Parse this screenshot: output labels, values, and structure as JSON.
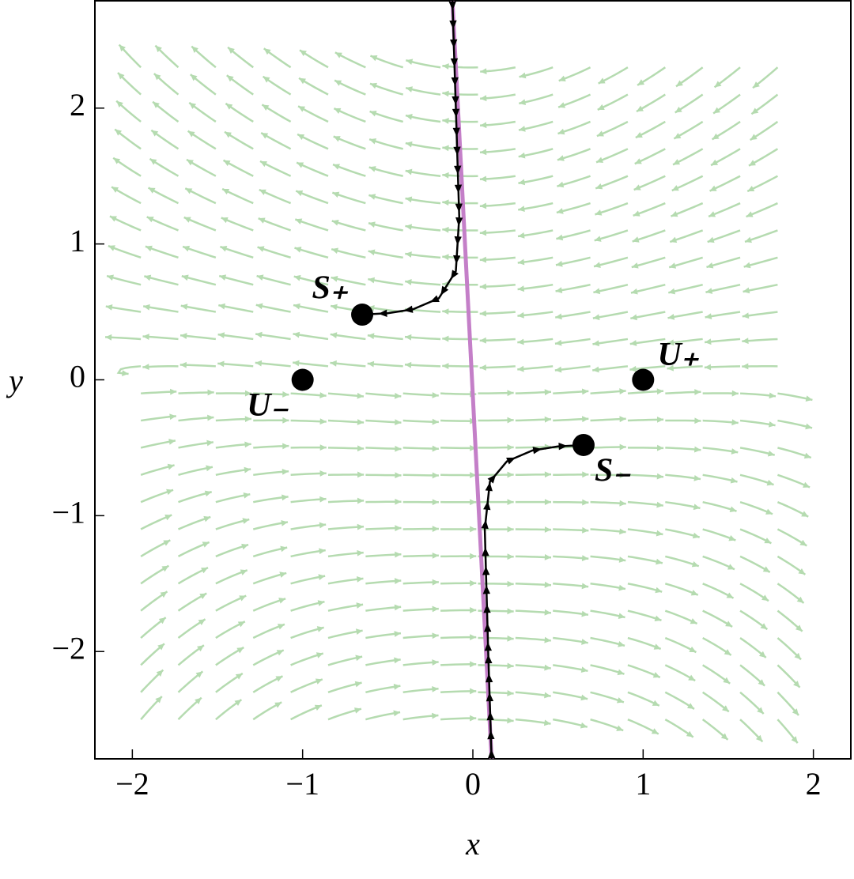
{
  "chart_data": {
    "type": "phase-portrait",
    "x_label": "x",
    "y_label": "y",
    "xlim": [
      -2.22,
      2.22
    ],
    "ylim": [
      -2.79,
      2.79
    ],
    "xticks": [
      {
        "value": -2,
        "label": "−2"
      },
      {
        "value": -1,
        "label": "−1"
      },
      0,
      1,
      2
    ],
    "yticks": [
      {
        "value": -2,
        "label": "−2"
      },
      {
        "value": -1,
        "label": "−1"
      },
      0,
      1,
      2
    ],
    "field_color": "#b5dbb0",
    "lines": [
      {
        "color": "#c47fc8",
        "x": [
          -0.12,
          0.11
        ],
        "y": [
          2.79,
          -2.79
        ]
      },
      {
        "color": "#000000",
        "x": [
          -0.12,
          -0.1,
          -0.08,
          -0.1,
          -0.2,
          -0.35,
          -0.5,
          -0.65
        ],
        "y": [
          2.79,
          2.0,
          1.2,
          0.8,
          0.6,
          0.52,
          0.49,
          0.48
        ]
      },
      {
        "color": "#000000",
        "x": [
          0.11,
          0.09,
          0.07,
          0.1,
          0.2,
          0.35,
          0.5,
          0.65
        ],
        "y": [
          -2.79,
          -2.0,
          -1.1,
          -0.75,
          -0.6,
          -0.52,
          -0.49,
          -0.48
        ]
      }
    ],
    "points": {
      "color": "#000000",
      "labels": [
        "U₊",
        "U₋",
        "S₊",
        "S₋"
      ],
      "x": [
        1,
        -1,
        -0.65,
        0.65
      ],
      "y": [
        0,
        0,
        0.48,
        -0.48
      ]
    }
  }
}
